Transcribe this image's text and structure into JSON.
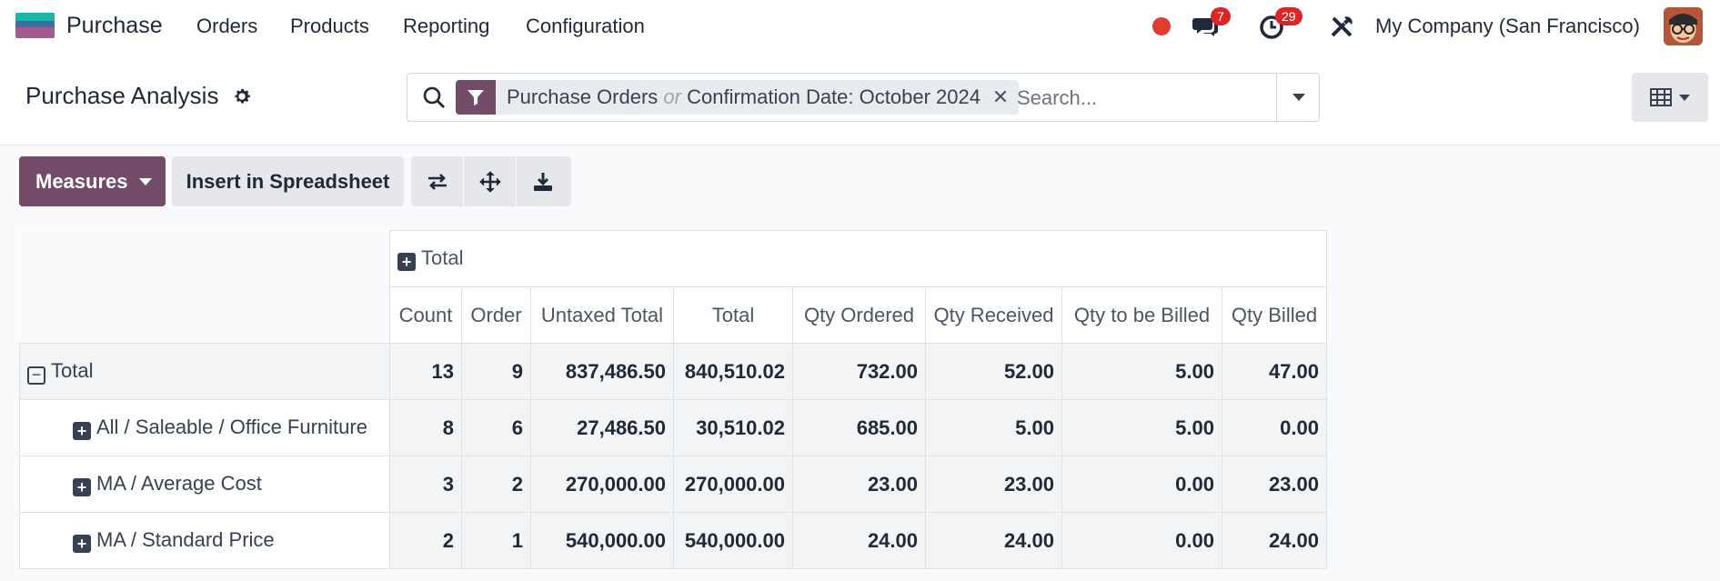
{
  "navbar": {
    "app_name": "Purchase",
    "menu": [
      "Orders",
      "Products",
      "Reporting",
      "Configuration"
    ],
    "messages_count": "7",
    "activities_count": "29",
    "company": "My Company (San Francisco)"
  },
  "control_panel": {
    "title": "Purchase Analysis",
    "facet_part1": "Purchase Orders",
    "facet_or": "or",
    "facet_part2": "Confirmation Date: October 2024",
    "search_placeholder": "Search..."
  },
  "toolbar": {
    "measures_label": "Measures",
    "insert_label": "Insert in Spreadsheet"
  },
  "pivot": {
    "col_group_label": "Total",
    "headers": [
      "Count",
      "Order",
      "Untaxed Total",
      "Total",
      "Qty Ordered",
      "Qty Received",
      "Qty to be Billed",
      "Qty Billed"
    ],
    "rows": [
      {
        "label": "Total",
        "values": [
          "13",
          "9",
          "837,486.50",
          "840,510.02",
          "732.00",
          "52.00",
          "5.00",
          "47.00"
        ]
      },
      {
        "label": "All / Saleable / Office Furniture",
        "values": [
          "8",
          "6",
          "27,486.50",
          "30,510.02",
          "685.00",
          "5.00",
          "5.00",
          "0.00"
        ]
      },
      {
        "label": "MA / Average Cost",
        "values": [
          "3",
          "2",
          "270,000.00",
          "270,000.00",
          "23.00",
          "23.00",
          "0.00",
          "23.00"
        ]
      },
      {
        "label": "MA / Standard Price",
        "values": [
          "2",
          "1",
          "540,000.00",
          "540,000.00",
          "24.00",
          "24.00",
          "0.00",
          "24.00"
        ]
      }
    ]
  }
}
